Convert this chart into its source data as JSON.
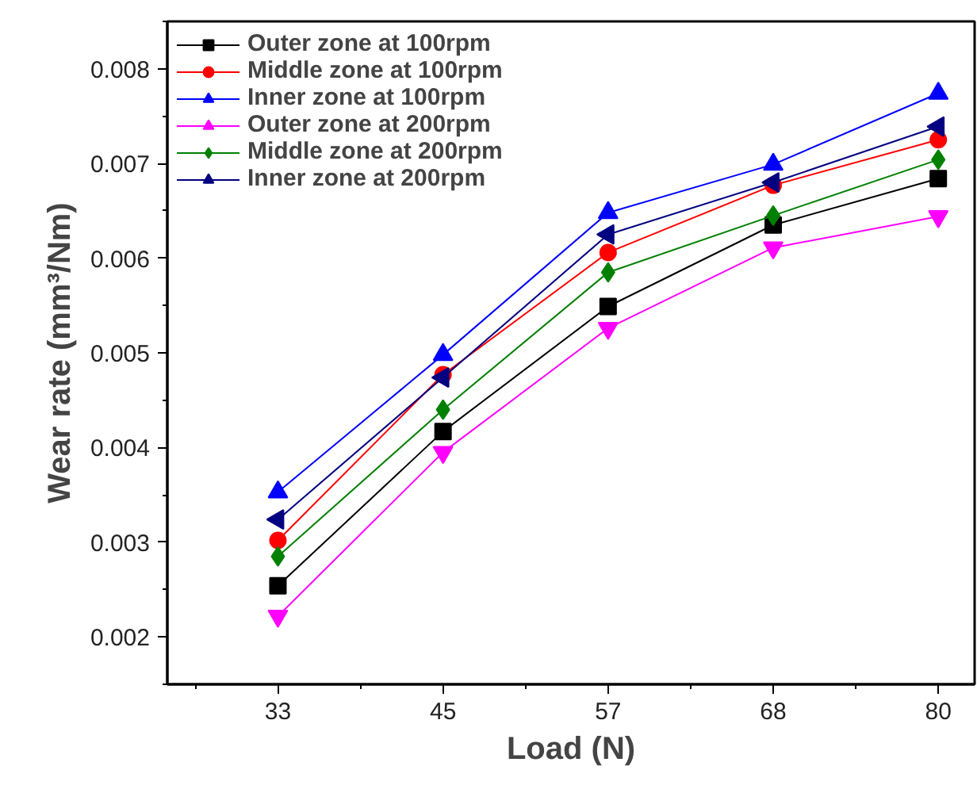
{
  "chart_data": {
    "type": "line",
    "xlabel": "Load (N)",
    "ylabel": "Wear rate (mm³/Nm)",
    "categories": [
      "33",
      "45",
      "57",
      "68",
      "80"
    ],
    "ylim": [
      0.0015,
      0.0085
    ],
    "yticks": [
      0.002,
      0.003,
      0.004,
      0.005,
      0.006,
      0.007,
      0.008
    ],
    "grid": false,
    "legend": "top left",
    "line_style": "solid",
    "series": [
      {
        "name": "Outer zone at 100rpm",
        "color": "#000000",
        "marker": "square",
        "values": [
          0.00254,
          0.00417,
          0.00549,
          0.00635,
          0.00684
        ]
      },
      {
        "name": "Middle zone at 100rpm",
        "color": "#ff0000",
        "marker": "circle",
        "values": [
          0.00302,
          0.00477,
          0.00606,
          0.00677,
          0.00725
        ]
      },
      {
        "name": "Inner zone at 100rpm",
        "color": "#0000ff",
        "marker": "triangle",
        "values": [
          0.00353,
          0.00498,
          0.00648,
          0.00699,
          0.00774
        ]
      },
      {
        "name": "Outer zone at 200rpm",
        "color": "#ff00ff",
        "marker": "triangle",
        "values": [
          0.00222,
          0.00395,
          0.00526,
          0.00611,
          0.00644
        ]
      },
      {
        "name": "Middle zone at 200rpm",
        "color": "#008000",
        "marker": "diamond",
        "values": [
          0.00285,
          0.0044,
          0.00585,
          0.00645,
          0.00704
        ]
      },
      {
        "name": "Inner zone at 200rpm",
        "color": "#000080",
        "marker": "triangle",
        "values": [
          0.00324,
          0.00474,
          0.00625,
          0.0068,
          0.00739
        ]
      }
    ]
  }
}
